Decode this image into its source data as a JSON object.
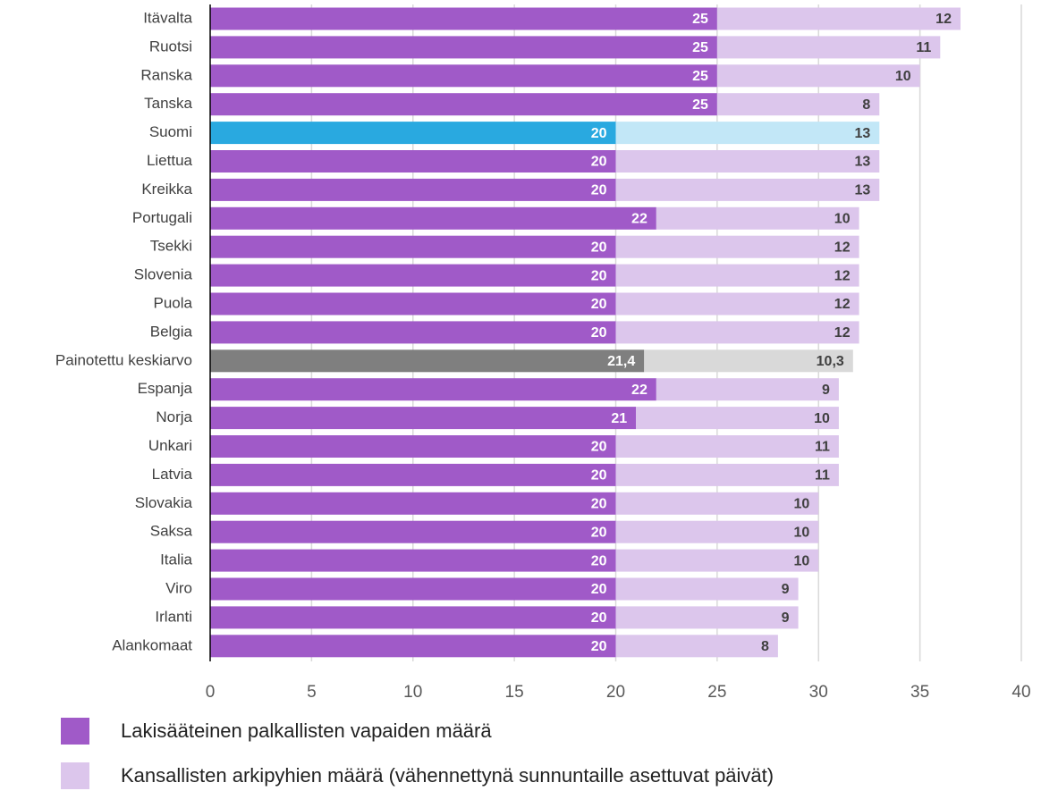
{
  "chart_data": {
    "type": "stacked_barh",
    "categories": [
      "Itävalta",
      "Ruotsi",
      "Ranska",
      "Tanska",
      "Suomi",
      "Liettua",
      "Kreikka",
      "Portugali",
      "Tsekki",
      "Slovenia",
      "Puola",
      "Belgia",
      "Painotettu keskiarvo",
      "Espanja",
      "Norja",
      "Unkari",
      "Latvia",
      "Slovakia",
      "Saksa",
      "Italia",
      "Viro",
      "Irlanti",
      "Alankomaat"
    ],
    "series": [
      {
        "name": "Lakisääteinen palkallisten vapaiden määrä",
        "color": "#a05ac8",
        "point_colors": [
          "#a05ac8",
          "#a05ac8",
          "#a05ac8",
          "#a05ac8",
          "#29a9e0",
          "#a05ac8",
          "#a05ac8",
          "#a05ac8",
          "#a05ac8",
          "#a05ac8",
          "#a05ac8",
          "#a05ac8",
          "#7f7f7f",
          "#a05ac8",
          "#a05ac8",
          "#a05ac8",
          "#a05ac8",
          "#a05ac8",
          "#a05ac8",
          "#a05ac8",
          "#a05ac8",
          "#a05ac8",
          "#a05ac8"
        ],
        "label_color": "#ffffff",
        "values": [
          25,
          25,
          25,
          25,
          20,
          20,
          20,
          22,
          20,
          20,
          20,
          20,
          21.4,
          22,
          21,
          20,
          20,
          20,
          20,
          20,
          20,
          20,
          20
        ],
        "value_labels": [
          "25",
          "25",
          "25",
          "25",
          "20",
          "20",
          "20",
          "22",
          "20",
          "20",
          "20",
          "20",
          "21,4",
          "22",
          "21",
          "20",
          "20",
          "20",
          "20",
          "20",
          "20",
          "20",
          "20"
        ]
      },
      {
        "name": "Kansallisten arkipyhien määrä (vähennettynä sunnuntaille asettuvat päivät)",
        "color": "#dcc6ec",
        "point_colors": [
          "#dcc6ec",
          "#dcc6ec",
          "#dcc6ec",
          "#dcc6ec",
          "#c2e7f7",
          "#dcc6ec",
          "#dcc6ec",
          "#dcc6ec",
          "#dcc6ec",
          "#dcc6ec",
          "#dcc6ec",
          "#dcc6ec",
          "#d9d9d9",
          "#dcc6ec",
          "#dcc6ec",
          "#dcc6ec",
          "#dcc6ec",
          "#dcc6ec",
          "#dcc6ec",
          "#dcc6ec",
          "#dcc6ec",
          "#dcc6ec",
          "#dcc6ec"
        ],
        "label_color": "#404040",
        "values": [
          12,
          11,
          10,
          8,
          13,
          13,
          13,
          10,
          12,
          12,
          12,
          12,
          10.3,
          9,
          10,
          11,
          11,
          10,
          10,
          10,
          9,
          9,
          8
        ],
        "value_labels": [
          "12",
          "11",
          "10",
          "8",
          "13",
          "13",
          "13",
          "10",
          "12",
          "12",
          "12",
          "12",
          "10,3",
          "9",
          "10",
          "11",
          "11",
          "10",
          "10",
          "10",
          "9",
          "9",
          "8"
        ]
      }
    ],
    "xlim": [
      0,
      40
    ],
    "xticks": [
      0,
      5,
      10,
      15,
      20,
      25,
      30,
      35,
      40
    ],
    "grid": true,
    "legend": "bottom"
  }
}
